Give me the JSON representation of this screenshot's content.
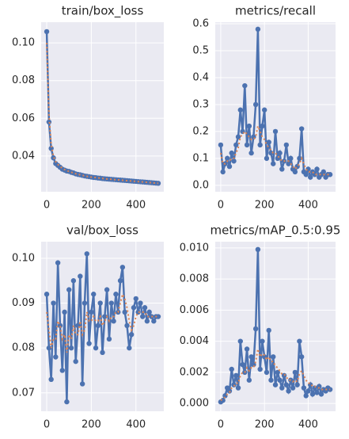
{
  "chart_data": [
    {
      "type": "line",
      "title": "train/box_loss",
      "grid": true,
      "background": "#eaeaf2",
      "x": [
        0,
        10,
        20,
        30,
        40,
        50,
        60,
        70,
        80,
        90,
        100,
        110,
        120,
        130,
        140,
        150,
        160,
        170,
        180,
        190,
        200,
        210,
        220,
        230,
        240,
        250,
        260,
        270,
        280,
        290,
        300,
        310,
        320,
        330,
        340,
        350,
        360,
        370,
        380,
        390,
        400,
        410,
        420,
        430,
        440,
        450,
        460,
        470,
        480,
        490,
        500
      ],
      "xlim": [
        -25,
        525
      ],
      "xticks": [
        0,
        200,
        400
      ],
      "ylim": [
        0.021,
        0.111
      ],
      "yticks": [
        0.04,
        0.06,
        0.08,
        {
          "value": 0.1,
          "label": "0.10"
        }
      ],
      "series": [
        {
          "color": "#4c72b0",
          "marker": true,
          "values": [
            0.106,
            0.058,
            0.044,
            0.039,
            0.036,
            0.035,
            0.034,
            0.033,
            0.0325,
            0.032,
            0.0318,
            0.0313,
            0.031,
            0.0305,
            0.0302,
            0.03,
            0.0297,
            0.0294,
            0.0292,
            0.029,
            0.0288,
            0.0286,
            0.0285,
            0.0283,
            0.0282,
            0.028,
            0.0279,
            0.0278,
            0.0277,
            0.0276,
            0.0275,
            0.0274,
            0.0273,
            0.0272,
            0.0271,
            0.027,
            0.0269,
            0.0268,
            0.0267,
            0.0266,
            0.0265,
            0.0264,
            0.0263,
            0.0262,
            0.0261,
            0.026,
            0.0259,
            0.0258,
            0.0257,
            0.0256,
            0.0255
          ]
        },
        {
          "color": "#dd8452",
          "dashed": true,
          "values": [
            0.1,
            0.062,
            0.046,
            0.04,
            0.037,
            0.0355,
            0.0345,
            0.0335,
            0.0328,
            0.0322,
            0.0318,
            0.0314,
            0.031,
            0.0306,
            0.0302,
            0.03,
            0.0297,
            0.0295,
            0.0292,
            0.029,
            0.0288,
            0.0287,
            0.0285,
            0.0284,
            0.0282,
            0.0281,
            0.0279,
            0.0278,
            0.0277,
            0.0276,
            0.0275,
            0.0274,
            0.0273,
            0.0272,
            0.0271,
            0.027,
            0.0269,
            0.0268,
            0.0267,
            0.0266,
            0.0265,
            0.0264,
            0.0263,
            0.0262,
            0.0261,
            0.026,
            0.0259,
            0.0258,
            0.0257,
            0.0256,
            0.0255
          ]
        }
      ]
    },
    {
      "type": "line",
      "title": "metrics/recall",
      "grid": true,
      "background": "#eaeaf2",
      "x": [
        0,
        10,
        20,
        30,
        40,
        50,
        60,
        70,
        80,
        90,
        100,
        110,
        120,
        130,
        140,
        150,
        160,
        170,
        180,
        190,
        200,
        210,
        220,
        230,
        240,
        250,
        260,
        270,
        280,
        290,
        300,
        310,
        320,
        330,
        340,
        350,
        360,
        370,
        380,
        390,
        400,
        410,
        420,
        430,
        440,
        450,
        460,
        470,
        480,
        490,
        500
      ],
      "xlim": [
        -25,
        525
      ],
      "xticks": [
        0,
        200,
        400
      ],
      "ylim": [
        -0.024,
        0.606
      ],
      "yticks": [
        {
          "value": 0,
          "label": "0.0"
        },
        0.1,
        0.2,
        0.3,
        0.4,
        0.5,
        0.6
      ],
      "series": [
        {
          "color": "#4c72b0",
          "marker": true,
          "values": [
            0.15,
            0.05,
            0.08,
            0.1,
            0.07,
            0.12,
            0.09,
            0.15,
            0.18,
            0.28,
            0.2,
            0.37,
            0.15,
            0.22,
            0.12,
            0.18,
            0.3,
            0.58,
            0.15,
            0.22,
            0.28,
            0.1,
            0.16,
            0.12,
            0.08,
            0.2,
            0.1,
            0.12,
            0.06,
            0.09,
            0.15,
            0.08,
            0.1,
            0.06,
            0.05,
            0.07,
            0.1,
            0.21,
            0.05,
            0.04,
            0.06,
            0.03,
            0.05,
            0.04,
            0.06,
            0.03,
            0.04,
            0.05,
            0.03,
            0.04,
            0.04
          ]
        },
        {
          "color": "#dd8452",
          "dashed": true,
          "values": [
            0.12,
            0.08,
            0.08,
            0.09,
            0.09,
            0.1,
            0.1,
            0.12,
            0.14,
            0.18,
            0.19,
            0.2,
            0.19,
            0.18,
            0.17,
            0.17,
            0.18,
            0.22,
            0.2,
            0.18,
            0.17,
            0.15,
            0.14,
            0.13,
            0.12,
            0.12,
            0.11,
            0.1,
            0.09,
            0.09,
            0.09,
            0.09,
            0.08,
            0.07,
            0.06,
            0.07,
            0.08,
            0.1,
            0.08,
            0.06,
            0.05,
            0.05,
            0.05,
            0.04,
            0.04,
            0.04,
            0.04,
            0.04,
            0.04,
            0.04,
            0.04
          ]
        }
      ]
    },
    {
      "type": "line",
      "title": "val/box_loss",
      "grid": true,
      "background": "#eaeaf2",
      "x": [
        0,
        10,
        20,
        30,
        40,
        50,
        60,
        70,
        80,
        90,
        100,
        110,
        120,
        130,
        140,
        150,
        160,
        170,
        180,
        190,
        200,
        210,
        220,
        230,
        240,
        250,
        260,
        270,
        280,
        290,
        300,
        310,
        320,
        330,
        340,
        350,
        360,
        370,
        380,
        390,
        400,
        410,
        420,
        430,
        440,
        450,
        460,
        470,
        480,
        490,
        500
      ],
      "xlim": [
        -25,
        525
      ],
      "xticks": [
        0,
        200,
        400
      ],
      "ylim": [
        0.0659,
        0.1037
      ],
      "yticks": [
        0.07,
        0.08,
        0.09,
        {
          "value": 0.1,
          "label": "0.10"
        }
      ],
      "series": [
        {
          "color": "#4c72b0",
          "marker": true,
          "values": [
            0.092,
            0.08,
            0.073,
            0.09,
            0.078,
            0.099,
            0.085,
            0.075,
            0.088,
            0.068,
            0.093,
            0.08,
            0.095,
            0.077,
            0.085,
            0.096,
            0.072,
            0.09,
            0.101,
            0.081,
            0.088,
            0.092,
            0.08,
            0.085,
            0.09,
            0.079,
            0.087,
            0.093,
            0.082,
            0.09,
            0.086,
            0.092,
            0.088,
            0.095,
            0.098,
            0.088,
            0.085,
            0.08,
            0.083,
            0.089,
            0.091,
            0.088,
            0.09,
            0.087,
            0.089,
            0.086,
            0.088,
            0.087,
            0.086,
            0.087,
            0.087
          ]
        },
        {
          "color": "#dd8452",
          "dashed": true,
          "values": [
            0.088,
            0.084,
            0.08,
            0.082,
            0.082,
            0.086,
            0.085,
            0.082,
            0.083,
            0.079,
            0.083,
            0.082,
            0.085,
            0.083,
            0.083,
            0.086,
            0.083,
            0.084,
            0.088,
            0.086,
            0.086,
            0.087,
            0.086,
            0.086,
            0.087,
            0.085,
            0.086,
            0.087,
            0.086,
            0.087,
            0.087,
            0.088,
            0.088,
            0.09,
            0.092,
            0.091,
            0.089,
            0.086,
            0.084,
            0.085,
            0.087,
            0.088,
            0.088,
            0.088,
            0.088,
            0.087,
            0.087,
            0.087,
            0.087,
            0.087,
            0.087
          ]
        }
      ]
    },
    {
      "type": "line",
      "title": "metrics/mAP_0.5:0.95",
      "grid": true,
      "background": "#eaeaf2",
      "x": [
        0,
        10,
        20,
        30,
        40,
        50,
        60,
        70,
        80,
        90,
        100,
        110,
        120,
        130,
        140,
        150,
        160,
        170,
        180,
        190,
        200,
        210,
        220,
        230,
        240,
        250,
        260,
        270,
        280,
        290,
        300,
        310,
        320,
        330,
        340,
        350,
        360,
        370,
        380,
        390,
        400,
        410,
        420,
        430,
        440,
        450,
        460,
        470,
        480,
        490,
        500
      ],
      "xlim": [
        -25,
        525
      ],
      "xticks": [
        0,
        200,
        400
      ],
      "ylim": [
        -0.0005,
        0.0104
      ],
      "yticks": [
        {
          "value": 0,
          "label": "0.000"
        },
        0.002,
        0.004,
        0.006,
        0.008,
        {
          "value": 0.01,
          "label": "0.010"
        }
      ],
      "series": [
        {
          "color": "#4c72b0",
          "marker": true,
          "values": [
            0.0001,
            0.0002,
            0.0005,
            0.001,
            0.0008,
            0.0022,
            0.0012,
            0.0018,
            0.001,
            0.004,
            0.0025,
            0.002,
            0.0035,
            0.0015,
            0.003,
            0.0025,
            0.0048,
            0.0099,
            0.0022,
            0.004,
            0.003,
            0.002,
            0.0047,
            0.0015,
            0.003,
            0.0012,
            0.002,
            0.0015,
            0.001,
            0.0018,
            0.0012,
            0.0008,
            0.0015,
            0.001,
            0.002,
            0.0012,
            0.004,
            0.003,
            0.001,
            0.0005,
            0.0008,
            0.0012,
            0.0006,
            0.001,
            0.0007,
            0.0011,
            0.0006,
            0.0009,
            0.0008,
            0.001,
            0.0009
          ]
        },
        {
          "color": "#dd8452",
          "dashed": true,
          "values": [
            0.0002,
            0.0003,
            0.0004,
            0.0006,
            0.0007,
            0.001,
            0.0011,
            0.0013,
            0.0013,
            0.0018,
            0.002,
            0.002,
            0.0023,
            0.0021,
            0.0023,
            0.0023,
            0.0027,
            0.0035,
            0.003,
            0.0032,
            0.0031,
            0.0028,
            0.003,
            0.0027,
            0.0027,
            0.0024,
            0.0023,
            0.0021,
            0.0019,
            0.0019,
            0.0017,
            0.0015,
            0.0015,
            0.0014,
            0.0015,
            0.0014,
            0.0019,
            0.0021,
            0.0018,
            0.0015,
            0.0013,
            0.0013,
            0.0011,
            0.0011,
            0.001,
            0.001,
            0.0009,
            0.0009,
            0.0009,
            0.0009,
            0.0009
          ]
        }
      ]
    }
  ]
}
